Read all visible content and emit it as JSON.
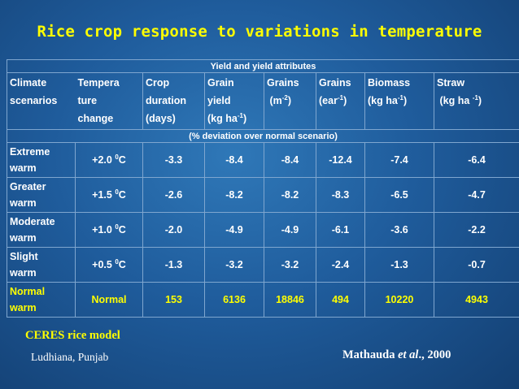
{
  "title": "Rice crop response to variations in temperature",
  "table": {
    "group_header": "Yield and yield attributes",
    "sub_header": "(% deviation over normal scenario)",
    "headers": {
      "climate": [
        "Climate",
        "scenarios"
      ],
      "temp": [
        "Tempera",
        "ture",
        "change"
      ],
      "crop": [
        "Crop",
        "duration",
        "(days)"
      ],
      "grain_yield": [
        "Grain",
        "yield",
        "(kg ha",
        "-1",
        ")"
      ],
      "grains_m": [
        "Grains",
        "(m",
        "-2",
        ")"
      ],
      "grains_ear": [
        "Grains",
        "(ear",
        "-1",
        ")"
      ],
      "biomass": [
        "Biomass",
        "(kg ha",
        "-1",
        ")"
      ],
      "straw": [
        "Straw",
        "(kg ha ",
        "-1",
        ")"
      ]
    },
    "rows": [
      {
        "scenario": [
          "Extreme",
          "warm"
        ],
        "temp": "+2.0",
        "values": [
          "-3.3",
          "-8.4",
          "-8.4",
          "-12.4",
          "-7.4",
          "-6.4"
        ]
      },
      {
        "scenario": [
          "Greater",
          "warm"
        ],
        "temp": "+1.5",
        "values": [
          "-2.6",
          "-8.2",
          "-8.2",
          "-8.3",
          "-6.5",
          "-4.7"
        ]
      },
      {
        "scenario": [
          "Moderate",
          "warm"
        ],
        "temp": "+1.0",
        "values": [
          "-2.0",
          "-4.9",
          "-4.9",
          "-6.1",
          "-3.6",
          "-2.2"
        ]
      },
      {
        "scenario": [
          "Slight",
          "warm"
        ],
        "temp": "+0.5",
        "values": [
          "-1.3",
          "-3.2",
          "-3.2",
          "-2.4",
          "-1.3",
          "-0.7"
        ]
      },
      {
        "scenario": [
          "Normal",
          "warm"
        ],
        "temp": "Normal",
        "values": [
          "153",
          "6136",
          "18846",
          "494",
          "10220",
          "4943"
        ]
      }
    ],
    "degree_sup": "0",
    "degree_unit": "C"
  },
  "footer": {
    "model": "CERES rice model",
    "location": "Ludhiana, Punjab",
    "cite_author": "Mathauda ",
    "cite_etal": "et al",
    "cite_year": "., 2000"
  },
  "colors": {
    "title": "#ffff00",
    "normal_row": "#ffff00",
    "background": "#1f5c9c"
  }
}
